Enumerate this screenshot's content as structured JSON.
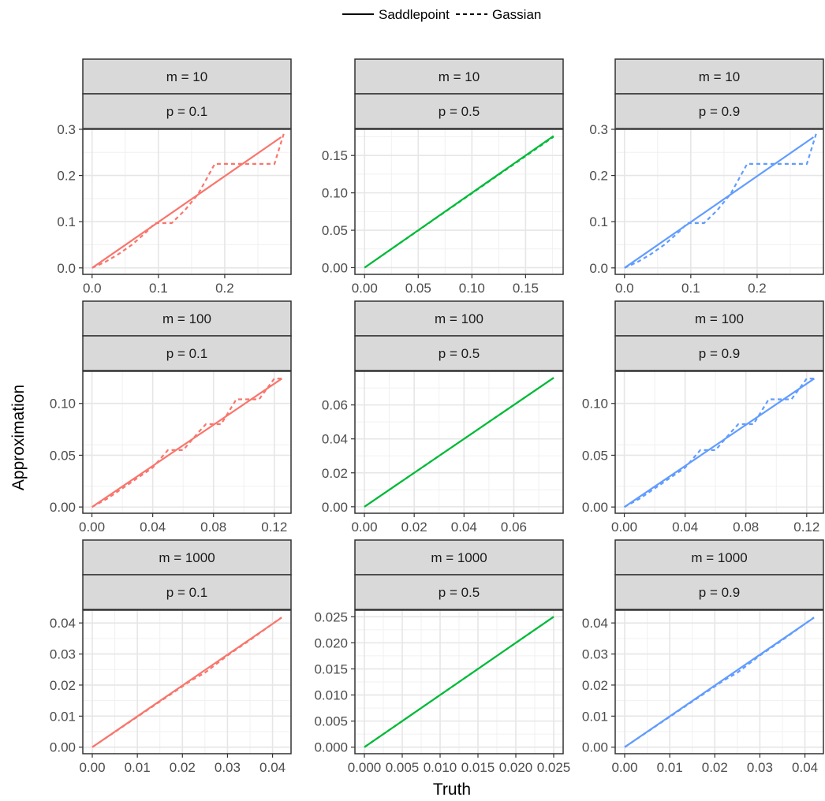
{
  "chart_data": {
    "type": "line",
    "layout": "facet-grid-3x3",
    "xlabel": "Truth",
    "ylabel": "Approximation",
    "legend": {
      "placement": "top",
      "entries": [
        {
          "label": "Saddlepoint",
          "linetype": "solid"
        },
        {
          "label": "Gassian",
          "linetype": "dashed"
        }
      ]
    },
    "grid": true,
    "facet_colors": {
      "p = 0.1": "#F8766D",
      "p = 0.5": "#00BA38",
      "p = 0.9": "#619CFF"
    },
    "panels": [
      {
        "strip_top": "m = 10",
        "strip_bottom": "p = 0.1",
        "color": "#F8766D",
        "xlim": [
          -0.014,
          0.3
        ],
        "ylim": [
          -0.014,
          0.3
        ],
        "xticks": [
          0.0,
          0.1,
          0.2
        ],
        "xtick_labels": [
          "0.0",
          "0.1",
          "0.2"
        ],
        "yticks": [
          0.0,
          0.1,
          0.2,
          0.3
        ],
        "ytick_labels": [
          "0.0",
          "0.1",
          "0.2",
          "0.3"
        ],
        "minor": [
          0.05,
          0.15,
          0.25
        ],
        "series": [
          {
            "name": "Saddlepoint",
            "x": [
              0.0,
              0.285
            ],
            "y": [
              0.0,
              0.283
            ]
          },
          {
            "name": "Gassian",
            "x": [
              0.0,
              0.02,
              0.04,
              0.06,
              0.08,
              0.095,
              0.12,
              0.14,
              0.16,
              0.185,
              0.205,
              0.23,
              0.255,
              0.275,
              0.29
            ],
            "y": [
              0.0,
              0.013,
              0.03,
              0.05,
              0.075,
              0.097,
              0.097,
              0.125,
              0.16,
              0.225,
              0.225,
              0.225,
              0.225,
              0.225,
              0.295
            ]
          }
        ]
      },
      {
        "strip_top": "m = 10",
        "strip_bottom": "p = 0.5",
        "color": "#00BA38",
        "xlim": [
          -0.009,
          0.185
        ],
        "ylim": [
          -0.009,
          0.185
        ],
        "xticks": [
          0.0,
          0.05,
          0.1,
          0.15
        ],
        "xtick_labels": [
          "0.00",
          "0.05",
          "0.10",
          "0.15"
        ],
        "yticks": [
          0.0,
          0.05,
          0.1,
          0.15
        ],
        "ytick_labels": [
          "0.00",
          "0.05",
          "0.10",
          "0.15"
        ],
        "minor": [
          0.025,
          0.075,
          0.125,
          0.175
        ],
        "series": [
          {
            "name": "Saddlepoint",
            "x": [
              0.0,
              0.176
            ],
            "y": [
              0.0,
              0.176
            ]
          },
          {
            "name": "Gassian",
            "x": [
              0.0,
              0.176
            ],
            "y": [
              0.0,
              0.175
            ]
          }
        ]
      },
      {
        "strip_top": "m = 10",
        "strip_bottom": "p = 0.9",
        "color": "#619CFF",
        "xlim": [
          -0.014,
          0.3
        ],
        "ylim": [
          -0.014,
          0.3
        ],
        "xticks": [
          0.0,
          0.1,
          0.2
        ],
        "xtick_labels": [
          "0.0",
          "0.1",
          "0.2"
        ],
        "yticks": [
          0.0,
          0.1,
          0.2,
          0.3
        ],
        "ytick_labels": [
          "0.0",
          "0.1",
          "0.2",
          "0.3"
        ],
        "minor": [
          0.05,
          0.15,
          0.25
        ],
        "series": [
          {
            "name": "Saddlepoint",
            "x": [
              0.0,
              0.285
            ],
            "y": [
              0.0,
              0.283
            ]
          },
          {
            "name": "Gassian",
            "x": [
              0.0,
              0.02,
              0.04,
              0.06,
              0.08,
              0.095,
              0.12,
              0.14,
              0.16,
              0.185,
              0.205,
              0.23,
              0.255,
              0.275,
              0.29
            ],
            "y": [
              0.0,
              0.013,
              0.03,
              0.05,
              0.075,
              0.097,
              0.097,
              0.125,
              0.16,
              0.225,
              0.225,
              0.225,
              0.225,
              0.225,
              0.295
            ]
          }
        ]
      },
      {
        "strip_top": "m = 100",
        "strip_bottom": "p = 0.1",
        "color": "#F8766D",
        "xlim": [
          -0.006,
          0.131
        ],
        "ylim": [
          -0.006,
          0.131
        ],
        "xticks": [
          0.0,
          0.04,
          0.08,
          0.12
        ],
        "xtick_labels": [
          "0.00",
          "0.04",
          "0.08",
          "0.12"
        ],
        "yticks": [
          0.0,
          0.05,
          0.1
        ],
        "ytick_labels": [
          "0.00",
          "0.05",
          "0.10"
        ],
        "minor": [
          0.02,
          0.06,
          0.1
        ],
        "series": [
          {
            "name": "Saddlepoint",
            "x": [
              0.0,
              0.125
            ],
            "y": [
              0.0,
              0.124
            ]
          },
          {
            "name": "Gassian",
            "x": [
              0.0,
              0.01,
              0.02,
              0.04,
              0.05,
              0.06,
              0.07,
              0.075,
              0.085,
              0.095,
              0.105,
              0.11,
              0.12,
              0.125
            ],
            "y": [
              0.0,
              0.008,
              0.018,
              0.038,
              0.055,
              0.055,
              0.072,
              0.08,
              0.08,
              0.104,
              0.104,
              0.104,
              0.124,
              0.124
            ]
          }
        ]
      },
      {
        "strip_top": "m = 100",
        "strip_bottom": "p = 0.5",
        "color": "#00BA38",
        "xlim": [
          -0.0038,
          0.0798
        ],
        "ylim": [
          -0.0038,
          0.0798
        ],
        "xticks": [
          0.0,
          0.02,
          0.04,
          0.06
        ],
        "xtick_labels": [
          "0.00",
          "0.02",
          "0.04",
          "0.06"
        ],
        "yticks": [
          0.0,
          0.02,
          0.04,
          0.06
        ],
        "ytick_labels": [
          "0.00",
          "0.02",
          "0.04",
          "0.06"
        ],
        "minor": [
          0.01,
          0.03,
          0.05,
          0.07
        ],
        "series": [
          {
            "name": "Saddlepoint",
            "x": [
              0.0,
              0.076
            ],
            "y": [
              0.0,
              0.076
            ]
          },
          {
            "name": "Gassian",
            "x": [
              0.0,
              0.076
            ],
            "y": [
              0.0,
              0.076
            ]
          }
        ]
      },
      {
        "strip_top": "m = 100",
        "strip_bottom": "p = 0.9",
        "color": "#619CFF",
        "xlim": [
          -0.006,
          0.131
        ],
        "ylim": [
          -0.006,
          0.131
        ],
        "xticks": [
          0.0,
          0.04,
          0.08,
          0.12
        ],
        "xtick_labels": [
          "0.00",
          "0.04",
          "0.08",
          "0.12"
        ],
        "yticks": [
          0.0,
          0.05,
          0.1
        ],
        "ytick_labels": [
          "0.00",
          "0.05",
          "0.10"
        ],
        "minor": [
          0.02,
          0.06,
          0.1
        ],
        "series": [
          {
            "name": "Saddlepoint",
            "x": [
              0.0,
              0.125
            ],
            "y": [
              0.0,
              0.124
            ]
          },
          {
            "name": "Gassian",
            "x": [
              0.0,
              0.01,
              0.02,
              0.04,
              0.05,
              0.06,
              0.07,
              0.075,
              0.085,
              0.095,
              0.105,
              0.11,
              0.12,
              0.125
            ],
            "y": [
              0.0,
              0.008,
              0.018,
              0.038,
              0.055,
              0.055,
              0.072,
              0.08,
              0.08,
              0.104,
              0.104,
              0.104,
              0.124,
              0.124
            ]
          }
        ]
      },
      {
        "strip_top": "m = 1000",
        "strip_bottom": "p = 0.1",
        "color": "#F8766D",
        "xlim": [
          -0.0021,
          0.0441
        ],
        "ylim": [
          -0.0021,
          0.0441
        ],
        "xticks": [
          0.0,
          0.01,
          0.02,
          0.03,
          0.04
        ],
        "xtick_labels": [
          "0.00",
          "0.01",
          "0.02",
          "0.03",
          "0.04"
        ],
        "yticks": [
          0.0,
          0.01,
          0.02,
          0.03,
          0.04
        ],
        "ytick_labels": [
          "0.00",
          "0.01",
          "0.02",
          "0.03",
          "0.04"
        ],
        "minor": [
          0.005,
          0.015,
          0.025,
          0.035
        ],
        "series": [
          {
            "name": "Saddlepoint",
            "x": [
              0.0,
              0.042
            ],
            "y": [
              0.0,
              0.0417
            ]
          },
          {
            "name": "Gassian",
            "x": [
              0.0,
              0.022,
              0.025,
              0.03,
              0.035,
              0.042
            ],
            "y": [
              0.0,
              0.0215,
              0.024,
              0.0295,
              0.0345,
              0.0418
            ]
          }
        ]
      },
      {
        "strip_top": "m = 1000",
        "strip_bottom": "p = 0.5",
        "color": "#00BA38",
        "xlim": [
          -0.00125,
          0.02625
        ],
        "ylim": [
          -0.00125,
          0.02625
        ],
        "xticks": [
          0.0,
          0.005,
          0.01,
          0.015,
          0.02,
          0.025
        ],
        "xtick_labels": [
          "0.000",
          "0.005",
          "0.010",
          "0.015",
          "0.020",
          "0.025"
        ],
        "yticks": [
          0.0,
          0.005,
          0.01,
          0.015,
          0.02,
          0.025
        ],
        "ytick_labels": [
          "0.000",
          "0.005",
          "0.010",
          "0.015",
          "0.020",
          "0.025"
        ],
        "minor": [
          0.0025,
          0.0075,
          0.0125,
          0.0175,
          0.0225
        ],
        "series": [
          {
            "name": "Saddlepoint",
            "x": [
              0.0,
              0.025
            ],
            "y": [
              0.0,
              0.025
            ]
          },
          {
            "name": "Gassian",
            "x": [
              0.0,
              0.025
            ],
            "y": [
              0.0,
              0.025
            ]
          }
        ]
      },
      {
        "strip_top": "m = 1000",
        "strip_bottom": "p = 0.9",
        "color": "#619CFF",
        "xlim": [
          -0.0021,
          0.0441
        ],
        "ylim": [
          -0.0021,
          0.0441
        ],
        "xticks": [
          0.0,
          0.01,
          0.02,
          0.03,
          0.04
        ],
        "xtick_labels": [
          "0.00",
          "0.01",
          "0.02",
          "0.03",
          "0.04"
        ],
        "yticks": [
          0.0,
          0.01,
          0.02,
          0.03,
          0.04
        ],
        "ytick_labels": [
          "0.00",
          "0.01",
          "0.02",
          "0.03",
          "0.04"
        ],
        "minor": [
          0.005,
          0.015,
          0.025,
          0.035
        ],
        "series": [
          {
            "name": "Saddlepoint",
            "x": [
              0.0,
              0.042
            ],
            "y": [
              0.0,
              0.0417
            ]
          },
          {
            "name": "Gassian",
            "x": [
              0.0,
              0.022,
              0.025,
              0.03,
              0.035,
              0.042
            ],
            "y": [
              0.0,
              0.0215,
              0.024,
              0.0295,
              0.0345,
              0.0418
            ]
          }
        ]
      }
    ]
  }
}
